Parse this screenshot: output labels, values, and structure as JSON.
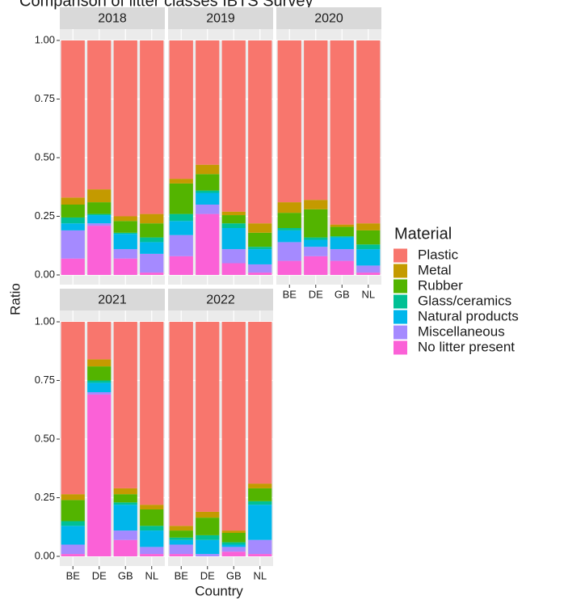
{
  "chart_data": {
    "type": "bar",
    "stacked": true,
    "title": "Comparison of litter classes IBTS Survey",
    "x_label": "Country",
    "y_label": "Ratio",
    "legend_title": "Material",
    "facets": [
      "2018",
      "2019",
      "2020",
      "2021",
      "2022"
    ],
    "categories": [
      "BE",
      "DE",
      "GB",
      "NL"
    ],
    "ylim": [
      0,
      1
    ],
    "yticks": [
      {
        "value": 0,
        "label": "0.00"
      },
      {
        "value": 0.25,
        "label": "0.25"
      },
      {
        "value": 0.5,
        "label": "0.50"
      },
      {
        "value": 0.75,
        "label": "0.75"
      },
      {
        "value": 1,
        "label": "1.00"
      }
    ],
    "grid": true,
    "series": [
      {
        "name": "Plastic",
        "color": "#F8766D",
        "values": [
          [
            0.67,
            0.635,
            0.75,
            0.74
          ],
          [
            0.59,
            0.53,
            0.73,
            0.78
          ],
          [
            0.69,
            0.68,
            0.785,
            0.78
          ],
          [
            0.735,
            0.16,
            0.71,
            0.78
          ],
          [
            0.87,
            0.81,
            0.89,
            0.69
          ]
        ]
      },
      {
        "name": "Metal",
        "color": "#C49A00",
        "values": [
          [
            0.03,
            0.055,
            0.02,
            0.04
          ],
          [
            0.02,
            0.04,
            0.015,
            0.04
          ],
          [
            0.045,
            0.04,
            0.01,
            0.03
          ],
          [
            0.025,
            0.03,
            0.025,
            0.02
          ],
          [
            0.02,
            0.025,
            0.01,
            0.02
          ]
        ]
      },
      {
        "name": "Rubber",
        "color": "#53B400",
        "values": [
          [
            0.055,
            0.05,
            0.05,
            0.06
          ],
          [
            0.13,
            0.07,
            0.035,
            0.06
          ],
          [
            0.065,
            0.12,
            0.04,
            0.06
          ],
          [
            0.09,
            0.06,
            0.035,
            0.07
          ],
          [
            0.03,
            0.075,
            0.04,
            0.055
          ]
        ]
      },
      {
        "name": "Glass/ceramics",
        "color": "#00C094",
        "values": [
          [
            0.025,
            0.005,
            0.005,
            0.02
          ],
          [
            0.03,
            0.01,
            0.02,
            0.01
          ],
          [
            0.01,
            0.01,
            0.005,
            0.02
          ],
          [
            0.02,
            0.01,
            0.01,
            0.02
          ],
          [
            0.01,
            0.02,
            0.01,
            0.015
          ]
        ]
      },
      {
        "name": "Natural products",
        "color": "#00B6EB",
        "values": [
          [
            0.03,
            0.035,
            0.065,
            0.05
          ],
          [
            0.06,
            0.05,
            0.09,
            0.065
          ],
          [
            0.05,
            0.03,
            0.05,
            0.07
          ],
          [
            0.08,
            0.04,
            0.11,
            0.07
          ],
          [
            0.02,
            0.06,
            0.01,
            0.15
          ]
        ]
      },
      {
        "name": "Miscellaneous",
        "color": "#A58AFF",
        "values": [
          [
            0.12,
            0.01,
            0.04,
            0.08
          ],
          [
            0.09,
            0.04,
            0.06,
            0.035
          ],
          [
            0.08,
            0.04,
            0.05,
            0.03
          ],
          [
            0.04,
            0.01,
            0.04,
            0.03
          ],
          [
            0.04,
            0.01,
            0.02,
            0.06
          ]
        ]
      },
      {
        "name": "No litter present",
        "color": "#FB61D7",
        "values": [
          [
            0.07,
            0.21,
            0.07,
            0.01
          ],
          [
            0.08,
            0.26,
            0.05,
            0.01
          ],
          [
            0.06,
            0.08,
            0.06,
            0.01
          ],
          [
            0.01,
            0.69,
            0.07,
            0.01
          ],
          [
            0.01,
            0,
            0.02,
            0.01
          ]
        ]
      }
    ]
  }
}
